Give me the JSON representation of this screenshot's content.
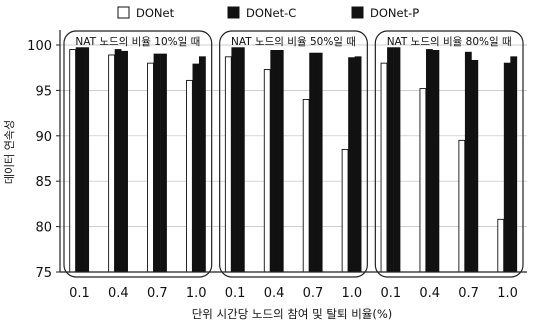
{
  "chart_data": {
    "type": "bar",
    "ylabel": "데이터 연속성",
    "xlabel": "단위 시간당 노드의 참여 및 탈퇴 비율(%)",
    "ylim": [
      75,
      100
    ],
    "yticks": [
      75,
      80,
      85,
      90,
      95,
      100
    ],
    "grid": true,
    "legend_position": "top",
    "series": [
      {
        "name": "DONet",
        "color": "#ffffff"
      },
      {
        "name": "DONet-C",
        "color": "#111111"
      },
      {
        "name": "DONet-P",
        "color": "#111111"
      }
    ],
    "panels": [
      {
        "title": "NAT 노드의 비율 10%일 때",
        "categories": [
          "0.1",
          "0.4",
          "0.7",
          "1.0"
        ],
        "values": {
          "DONet": [
            99.5,
            98.9,
            98.0,
            96.1
          ],
          "DONet-C": [
            99.7,
            99.5,
            99.0,
            97.9
          ],
          "DONet-P": [
            99.7,
            99.3,
            99.0,
            98.7
          ]
        }
      },
      {
        "title": "NAT 노드의 비율 50%일 때",
        "categories": [
          "0.1",
          "0.4",
          "0.7",
          "1.0"
        ],
        "values": {
          "DONet": [
            98.7,
            97.3,
            94.0,
            88.5
          ],
          "DONet-C": [
            99.7,
            99.4,
            99.1,
            98.6
          ],
          "DONet-P": [
            99.7,
            99.4,
            99.1,
            98.7
          ]
        }
      },
      {
        "title": "NAT 노드의 비율 80%일 때",
        "categories": [
          "0.1",
          "0.4",
          "0.7",
          "1.0"
        ],
        "values": {
          "DONet": [
            98.0,
            95.2,
            89.5,
            80.8
          ],
          "DONet-C": [
            99.7,
            99.5,
            99.2,
            98.0
          ],
          "DONet-P": [
            99.7,
            99.4,
            98.3,
            98.7
          ]
        }
      }
    ]
  }
}
